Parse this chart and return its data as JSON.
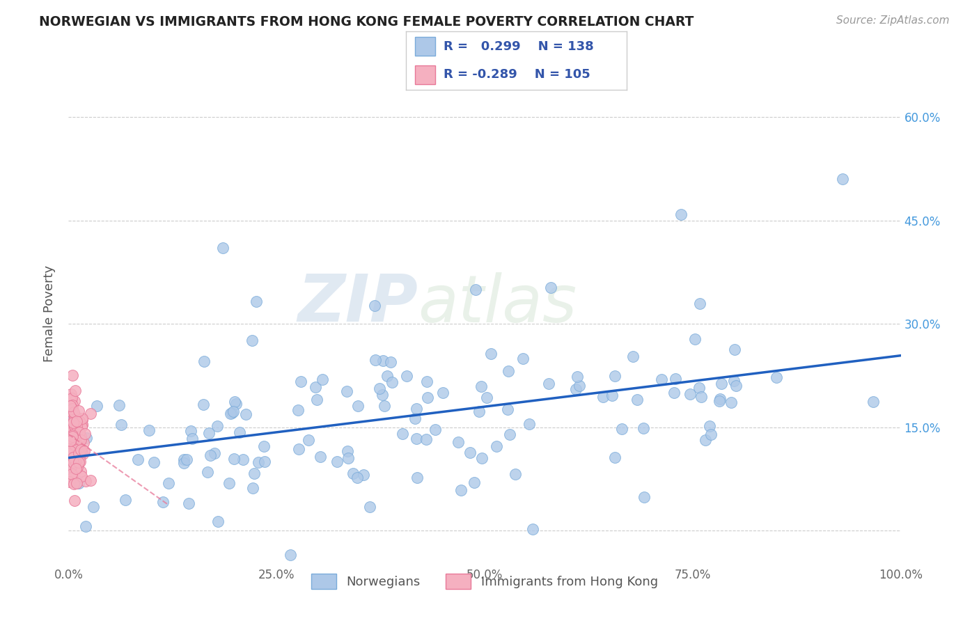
{
  "title": "NORWEGIAN VS IMMIGRANTS FROM HONG KONG FEMALE POVERTY CORRELATION CHART",
  "source_text": "Source: ZipAtlas.com",
  "ylabel": "Female Poverty",
  "watermark": "ZIPatlas",
  "xlim": [
    0,
    1
  ],
  "ylim": [
    -0.05,
    0.68
  ],
  "yticks": [
    0.0,
    0.15,
    0.3,
    0.45,
    0.6
  ],
  "xticks": [
    0.0,
    0.25,
    0.5,
    0.75,
    1.0
  ],
  "xtick_labels": [
    "0.0%",
    "25.0%",
    "50.0%",
    "75.0%",
    "100.0%"
  ],
  "ytick_labels_right": [
    "",
    "15.0%",
    "30.0%",
    "45.0%",
    "60.0%"
  ],
  "series1_name": "Norwegians",
  "series1_color": "#adc8e8",
  "series1_edge_color": "#7aabda",
  "series1_R": 0.299,
  "series1_N": 138,
  "series1_line_color": "#2060c0",
  "series2_name": "Immigrants from Hong Kong",
  "series2_color": "#f5b0c0",
  "series2_edge_color": "#e87898",
  "series2_R": -0.289,
  "series2_N": 105,
  "series2_line_color": "#e87898",
  "background_color": "#ffffff",
  "grid_color": "#cccccc",
  "title_color": "#222222",
  "legend_text_color": "#3355aa",
  "right_axis_tick_color": "#4499dd"
}
